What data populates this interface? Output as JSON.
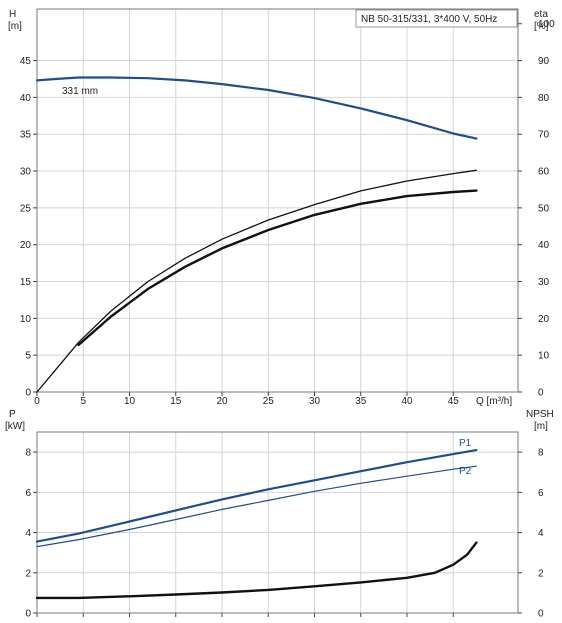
{
  "chart_data": [
    {
      "type": "line",
      "legend_box": "NB 50-315/331, 3*400 V, 50Hz",
      "xlabel": "Q [m³/h]",
      "x_ticks": [
        "0",
        "5",
        "10",
        "15",
        "20",
        "25",
        "30",
        "35",
        "40",
        "45"
      ],
      "xlim": [
        0,
        52
      ],
      "ylabel_left": {
        "line1": "H",
        "line2": "[m]"
      },
      "ylim_left": [
        0,
        52
      ],
      "y_ticks_left": [
        "0",
        "5",
        "10",
        "15",
        "20",
        "25",
        "30",
        "35",
        "40",
        "45"
      ],
      "ylabel_right": {
        "line1": "eta",
        "line2": "[%]"
      },
      "ylim_right": [
        0,
        104
      ],
      "y_ticks_right": [
        "0",
        "10",
        "20",
        "30",
        "40",
        "50",
        "60",
        "70",
        "80",
        "90",
        "100"
      ],
      "grid": true,
      "annotation": "331 mm",
      "series": [
        {
          "name": "",
          "axis": "left",
          "color": "#1f4e8c",
          "width": 2.2,
          "points": [
            [
              0,
              42.3
            ],
            [
              2,
              42.5
            ],
            [
              4.5,
              42.7
            ],
            [
              8,
              42.7
            ],
            [
              12,
              42.6
            ],
            [
              16,
              42.3
            ],
            [
              20,
              41.8
            ],
            [
              25,
              41.0
            ],
            [
              30,
              39.9
            ],
            [
              35,
              38.5
            ],
            [
              40,
              36.9
            ],
            [
              45,
              35.1
            ],
            [
              47.5,
              34.4
            ]
          ]
        },
        {
          "name": "",
          "axis": "right",
          "color": "#111111",
          "width": 1.3,
          "points": [
            [
              0,
              0
            ],
            [
              2,
              6
            ],
            [
              4.5,
              13.5
            ],
            [
              8,
              22
            ],
            [
              12,
              30
            ],
            [
              16,
              36.3
            ],
            [
              20,
              41.5
            ],
            [
              25,
              46.7
            ],
            [
              30,
              50.9
            ],
            [
              35,
              54.6
            ],
            [
              40,
              57.3
            ],
            [
              45,
              59.3
            ],
            [
              47.5,
              60.2
            ]
          ]
        },
        {
          "name": "",
          "axis": "right",
          "color": "#111111",
          "width": 2.4,
          "points": [
            [
              4.5,
              12.8
            ],
            [
              8,
              20.5
            ],
            [
              12,
              28
            ],
            [
              16,
              34
            ],
            [
              20,
              39
            ],
            [
              25,
              44
            ],
            [
              30,
              48.1
            ],
            [
              35,
              51.1
            ],
            [
              40,
              53.2
            ],
            [
              45,
              54.3
            ],
            [
              47.5,
              54.7
            ]
          ]
        }
      ]
    },
    {
      "type": "line",
      "ylabel_left": {
        "line1": "P",
        "line2": "[kW]"
      },
      "ylim_left": [
        0,
        9
      ],
      "y_ticks_left": [
        "0",
        "2",
        "4",
        "6",
        "8"
      ],
      "ylabel_right": {
        "line1": "NPSH",
        "line2": "[m]"
      },
      "ylim_right": [
        0,
        9
      ],
      "y_ticks_right": [
        "0",
        "2",
        "4",
        "6",
        "8"
      ],
      "xlim": [
        0,
        52
      ],
      "grid": true,
      "series": [
        {
          "name": "P1",
          "axis": "left",
          "color": "#1f4e8c",
          "width": 2.2,
          "points": [
            [
              0,
              3.55
            ],
            [
              4.5,
              3.95
            ],
            [
              10,
              4.55
            ],
            [
              15,
              5.1
            ],
            [
              20,
              5.65
            ],
            [
              25,
              6.15
            ],
            [
              30,
              6.6
            ],
            [
              35,
              7.05
            ],
            [
              40,
              7.5
            ],
            [
              45,
              7.9
            ],
            [
              47.5,
              8.1
            ]
          ]
        },
        {
          "name": "P2",
          "axis": "left",
          "color": "#1f4e8c",
          "width": 1.2,
          "points": [
            [
              0,
              3.3
            ],
            [
              4.5,
              3.65
            ],
            [
              10,
              4.15
            ],
            [
              15,
              4.65
            ],
            [
              20,
              5.15
            ],
            [
              25,
              5.6
            ],
            [
              30,
              6.05
            ],
            [
              35,
              6.45
            ],
            [
              40,
              6.8
            ],
            [
              45,
              7.15
            ],
            [
              47.5,
              7.3
            ]
          ]
        },
        {
          "name": "",
          "axis": "right",
          "color": "#111111",
          "width": 2.4,
          "points": [
            [
              0,
              0.75
            ],
            [
              4.5,
              0.75
            ],
            [
              10,
              0.83
            ],
            [
              15,
              0.92
            ],
            [
              20,
              1.02
            ],
            [
              25,
              1.15
            ],
            [
              30,
              1.33
            ],
            [
              35,
              1.52
            ],
            [
              40,
              1.75
            ],
            [
              43,
              2.0
            ],
            [
              45,
              2.4
            ],
            [
              46.5,
              2.9
            ],
            [
              47.5,
              3.5
            ]
          ]
        }
      ]
    }
  ]
}
